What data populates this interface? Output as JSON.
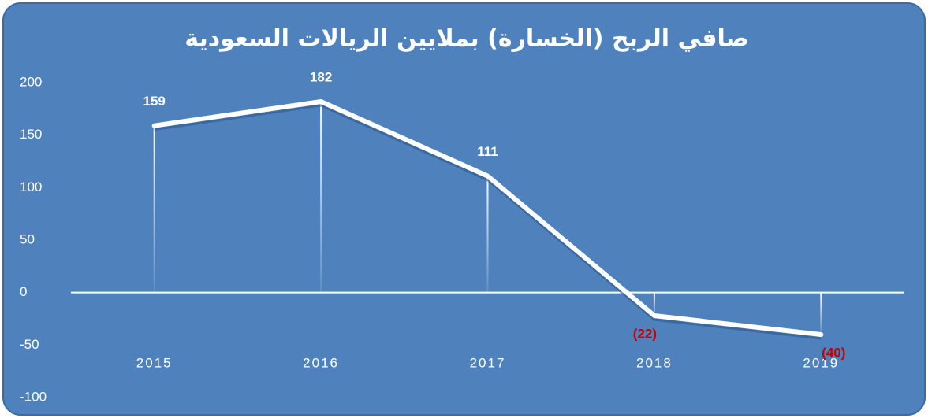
{
  "chart_data": {
    "type": "line",
    "title": "صافي الربح (الخسارة) بملايين الريالات السعودية",
    "categories": [
      "2015",
      "2016",
      "2017",
      "2018",
      "2019"
    ],
    "values": [
      159,
      182,
      111,
      -22,
      -40
    ],
    "value_labels": [
      "159",
      "182",
      "111",
      "(22)",
      "(40)"
    ],
    "color": "#ffffff",
    "negative_label_color": "#c00000",
    "ylim": [
      -100,
      200
    ],
    "yticks": [
      -100,
      -50,
      0,
      50,
      100,
      150,
      200
    ],
    "grid": false
  }
}
